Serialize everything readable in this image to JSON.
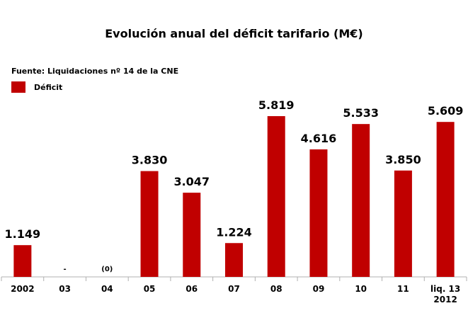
{
  "chart_data": {
    "type": "bar",
    "title": "Evolución anual del déficit tarifario (M€)",
    "source": "Fuente: Liquidaciones nº 14 de la CNE",
    "legend": {
      "label": "Déficit",
      "position": "top-left",
      "color": "#c00000"
    },
    "categories": [
      "2002",
      "03",
      "04",
      "05",
      "06",
      "07",
      "08",
      "09",
      "10",
      "11",
      "liq. 13 2012"
    ],
    "values": [
      1149,
      0,
      0,
      3830,
      3047,
      1224,
      5819,
      4616,
      5533,
      3850,
      5609
    ],
    "value_labels": [
      "1.149",
      "-",
      "(0)",
      "3.830",
      "3.047",
      "1.224",
      "5.819",
      "4.616",
      "5.533",
      "3.850",
      "5.609"
    ],
    "xlabel": "",
    "ylabel": "",
    "ylim": [
      0,
      6000
    ],
    "grid": false,
    "bar_color": "#c00000"
  }
}
